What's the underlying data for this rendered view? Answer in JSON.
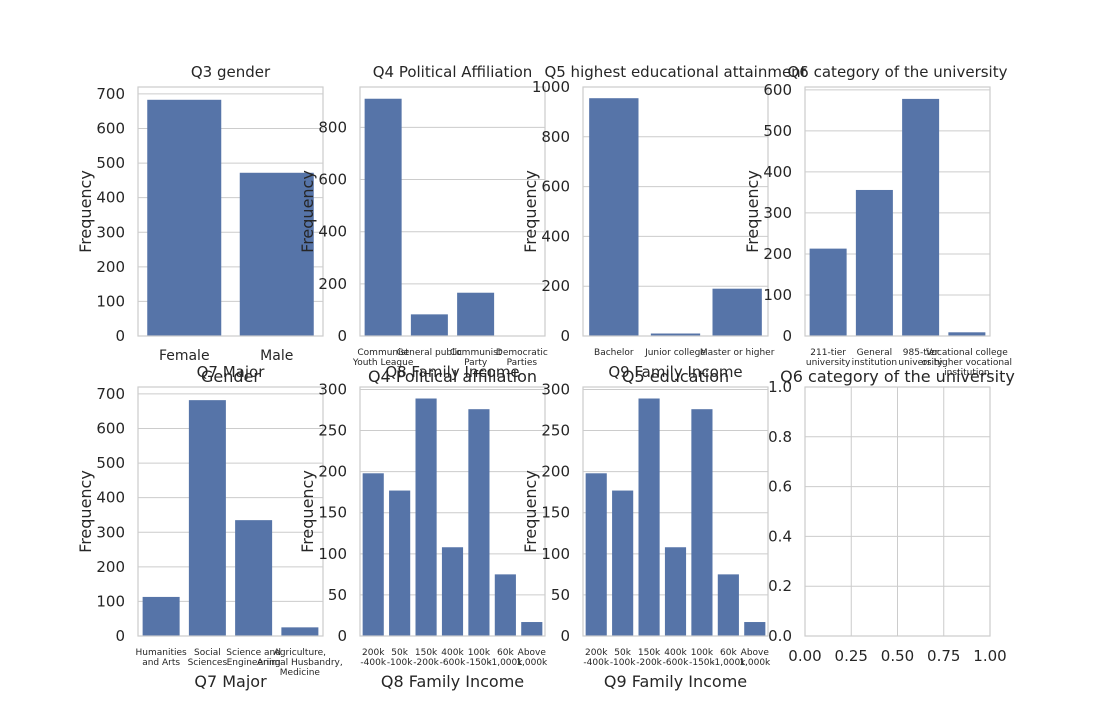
{
  "chart_data": [
    {
      "type": "bar",
      "title": "Q3 gender",
      "xlabel": "Gender",
      "ylabel": "Frequency",
      "categories": [
        [
          "Female"
        ],
        [
          "Male"
        ]
      ],
      "values": [
        683,
        472
      ],
      "ylim": [
        0,
        720
      ],
      "yticks": [
        0,
        100,
        200,
        300,
        400,
        500,
        600,
        700
      ],
      "ytick_labels": [
        "0",
        "100",
        "200",
        "300",
        "400",
        "500",
        "600",
        "700"
      ],
      "grid": "y",
      "bar_color": "#5674a8",
      "tick_font": 14
    },
    {
      "type": "bar",
      "title": "Q4 Political Affiliation",
      "xlabel": "Q4 Political affiliation",
      "ylabel": "Frequency",
      "categories": [
        [
          "Communist",
          "Youth League"
        ],
        [
          "General public"
        ],
        [
          "Communist",
          "Party"
        ],
        [
          "Democratic",
          "Parties"
        ]
      ],
      "values": [
        910,
        83,
        166,
        0
      ],
      "ylim": [
        0,
        955
      ],
      "yticks": [
        0,
        200,
        400,
        600,
        800
      ],
      "ytick_labels": [
        "0",
        "200",
        "400",
        "600",
        "800"
      ],
      "grid": "y",
      "bar_color": "#5674a8",
      "tick_font": 10
    },
    {
      "type": "bar",
      "title": "Q5 highest educational attainment",
      "xlabel": "Q5 education",
      "ylabel": "Frequency",
      "categories": [
        [
          "Bachelor"
        ],
        [
          "Junior college"
        ],
        [
          "Master or higher"
        ]
      ],
      "values": [
        955,
        10,
        190
      ],
      "ylim": [
        0,
        1000
      ],
      "yticks": [
        0,
        200,
        400,
        600,
        800,
        1000
      ],
      "ytick_labels": [
        "0",
        "200",
        "400",
        "600",
        "800",
        "1000"
      ],
      "grid": "y",
      "bar_color": "#5674a8",
      "tick_font": 10
    },
    {
      "type": "bar",
      "title": "Q6 category of the university",
      "xlabel": "Q6 category of the university",
      "ylabel": "Frequency",
      "categories": [
        [
          "211-tier",
          "university"
        ],
        [
          "General",
          "institution"
        ],
        [
          "985-tier",
          "university"
        ],
        [
          "Vocational college",
          "or higher vocational",
          "institution"
        ]
      ],
      "values": [
        213,
        356,
        578,
        9
      ],
      "ylim": [
        0,
        607
      ],
      "yticks": [
        0,
        100,
        200,
        300,
        400,
        500,
        600
      ],
      "ytick_labels": [
        "0",
        "100",
        "200",
        "300",
        "400",
        "500",
        "600"
      ],
      "grid": "y",
      "bar_color": "#5674a8",
      "tick_font": 10
    },
    {
      "type": "bar",
      "title": "Q7 Major",
      "xlabel": "Q7 Major",
      "ylabel": "Frequency",
      "categories": [
        [
          "Humanities",
          "and Arts"
        ],
        [
          "Social",
          "Sciences"
        ],
        [
          "Science and",
          "Engineering"
        ],
        [
          "Agriculture,",
          "Animal Husbandry,",
          "Medicine"
        ]
      ],
      "values": [
        113,
        682,
        335,
        25
      ],
      "ylim": [
        0,
        720
      ],
      "yticks": [
        0,
        100,
        200,
        300,
        400,
        500,
        600,
        700
      ],
      "ytick_labels": [
        "0",
        "100",
        "200",
        "300",
        "400",
        "500",
        "600",
        "700"
      ],
      "grid": "y",
      "bar_color": "#5674a8",
      "tick_font": 10
    },
    {
      "type": "bar",
      "title": "Q8 Family Income",
      "xlabel": "Q8 Family Income",
      "ylabel": "Frequency",
      "categories": [
        [
          "200k",
          "-400k"
        ],
        [
          "50k",
          "-100k"
        ],
        [
          "150k",
          "-200k"
        ],
        [
          "400k",
          "-600k"
        ],
        [
          "100k",
          "-150k"
        ],
        [
          "60k",
          "-1,000k"
        ],
        [
          "Above",
          "1,000k"
        ]
      ],
      "values": [
        198,
        177,
        289,
        108,
        276,
        75,
        17
      ],
      "ylim": [
        0,
        303
      ],
      "yticks": [
        0,
        50,
        100,
        150,
        200,
        250,
        300
      ],
      "ytick_labels": [
        "0",
        "50",
        "100",
        "150",
        "200",
        "250",
        "300"
      ],
      "grid": "y",
      "bar_color": "#5674a8",
      "tick_font": 10
    },
    {
      "type": "bar",
      "title": "Q9 Family Income",
      "xlabel": "Q9 Family Income",
      "ylabel": "Frequency",
      "categories": [
        [
          "200k",
          "-400k"
        ],
        [
          "50k",
          "-100k"
        ],
        [
          "150k",
          "-200k"
        ],
        [
          "400k",
          "-600k"
        ],
        [
          "100k",
          "-150k"
        ],
        [
          "60k",
          "-1,000k"
        ],
        [
          "Above",
          "1,000k"
        ]
      ],
      "values": [
        198,
        177,
        289,
        108,
        276,
        75,
        17
      ],
      "ylim": [
        0,
        303
      ],
      "yticks": [
        0,
        50,
        100,
        150,
        200,
        250,
        300
      ],
      "ytick_labels": [
        "0",
        "50",
        "100",
        "150",
        "200",
        "250",
        "300"
      ],
      "grid": "y",
      "bar_color": "#5674a8",
      "tick_font": 10
    },
    {
      "type": "bar",
      "title": "",
      "xlabel": "",
      "ylabel": "",
      "categories": [],
      "values": [],
      "xlim": [
        0,
        1
      ],
      "ylim": [
        0,
        1
      ],
      "xticks": [
        0,
        0.25,
        0.5,
        0.75,
        1
      ],
      "xtick_labels": [
        "0.00",
        "0.25",
        "0.50",
        "0.75",
        "1.00"
      ],
      "yticks": [
        0,
        0.2,
        0.4,
        0.6,
        0.8,
        1
      ],
      "ytick_labels": [
        "0.0",
        "0.2",
        "0.4",
        "0.6",
        "0.8",
        "1.0"
      ],
      "grid": "both",
      "bar_color": "#5674a8",
      "tick_font": 14
    }
  ]
}
